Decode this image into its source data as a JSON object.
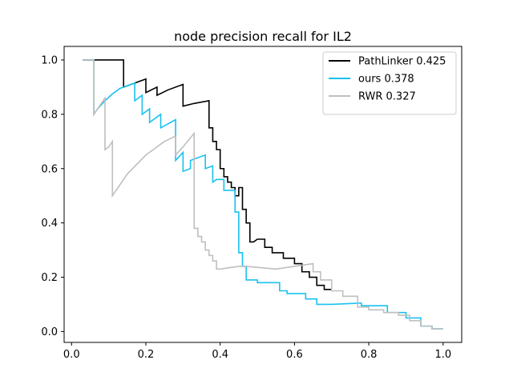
{
  "chart_data": {
    "type": "line",
    "title": "node precision recall for IL2",
    "xlabel": "",
    "ylabel": "",
    "xlim": [
      -0.02,
      1.05
    ],
    "ylim": [
      -0.04,
      1.05
    ],
    "xticks": [
      0.0,
      0.2,
      0.4,
      0.6,
      0.8,
      1.0
    ],
    "xtick_labels": [
      "0.0",
      "0.2",
      "0.4",
      "0.6",
      "0.8",
      "1.0"
    ],
    "yticks": [
      0.0,
      0.2,
      0.4,
      0.6,
      0.8,
      1.0
    ],
    "ytick_labels": [
      "0.0",
      "0.2",
      "0.4",
      "0.6",
      "0.8",
      "1.0"
    ],
    "grid": false,
    "legend_position": "top-right",
    "series": [
      {
        "name": "PathLinker 0.425",
        "color": "#000000",
        "points": [
          [
            0.03,
            1.0
          ],
          [
            0.14,
            1.0
          ],
          [
            0.14,
            0.9
          ],
          [
            0.15,
            0.905
          ],
          [
            0.16,
            0.91
          ],
          [
            0.17,
            0.915
          ],
          [
            0.18,
            0.92
          ],
          [
            0.2,
            0.93
          ],
          [
            0.2,
            0.88
          ],
          [
            0.23,
            0.9
          ],
          [
            0.23,
            0.87
          ],
          [
            0.26,
            0.89
          ],
          [
            0.3,
            0.91
          ],
          [
            0.3,
            0.83
          ],
          [
            0.33,
            0.84
          ],
          [
            0.37,
            0.85
          ],
          [
            0.37,
            0.75
          ],
          [
            0.38,
            0.75
          ],
          [
            0.38,
            0.7
          ],
          [
            0.39,
            0.7
          ],
          [
            0.39,
            0.67
          ],
          [
            0.4,
            0.67
          ],
          [
            0.4,
            0.6
          ],
          [
            0.41,
            0.6
          ],
          [
            0.41,
            0.57
          ],
          [
            0.42,
            0.57
          ],
          [
            0.42,
            0.55
          ],
          [
            0.43,
            0.55
          ],
          [
            0.43,
            0.53
          ],
          [
            0.44,
            0.53
          ],
          [
            0.44,
            0.5
          ],
          [
            0.45,
            0.5
          ],
          [
            0.45,
            0.53
          ],
          [
            0.46,
            0.53
          ],
          [
            0.46,
            0.45
          ],
          [
            0.47,
            0.45
          ],
          [
            0.47,
            0.4
          ],
          [
            0.48,
            0.4
          ],
          [
            0.48,
            0.33
          ],
          [
            0.49,
            0.33
          ],
          [
            0.5,
            0.34
          ],
          [
            0.52,
            0.34
          ],
          [
            0.52,
            0.31
          ],
          [
            0.54,
            0.31
          ],
          [
            0.54,
            0.29
          ],
          [
            0.57,
            0.29
          ],
          [
            0.57,
            0.27
          ],
          [
            0.6,
            0.27
          ],
          [
            0.6,
            0.25
          ],
          [
            0.62,
            0.25
          ],
          [
            0.62,
            0.22
          ],
          [
            0.64,
            0.22
          ],
          [
            0.64,
            0.2
          ],
          [
            0.66,
            0.2
          ],
          [
            0.66,
            0.17
          ],
          [
            0.68,
            0.17
          ],
          [
            0.68,
            0.155
          ],
          [
            0.7,
            0.155
          ]
        ]
      },
      {
        "name": "ours 0.378",
        "color": "#19c0f0",
        "points": [
          [
            0.03,
            1.0
          ],
          [
            0.06,
            1.0
          ],
          [
            0.06,
            0.8
          ],
          [
            0.07,
            0.82
          ],
          [
            0.09,
            0.85
          ],
          [
            0.11,
            0.875
          ],
          [
            0.13,
            0.895
          ],
          [
            0.15,
            0.905
          ],
          [
            0.17,
            0.915
          ],
          [
            0.17,
            0.85
          ],
          [
            0.19,
            0.87
          ],
          [
            0.19,
            0.8
          ],
          [
            0.21,
            0.82
          ],
          [
            0.21,
            0.77
          ],
          [
            0.24,
            0.8
          ],
          [
            0.24,
            0.75
          ],
          [
            0.28,
            0.78
          ],
          [
            0.28,
            0.63
          ],
          [
            0.3,
            0.66
          ],
          [
            0.3,
            0.59
          ],
          [
            0.32,
            0.6
          ],
          [
            0.32,
            0.63
          ],
          [
            0.36,
            0.65
          ],
          [
            0.36,
            0.6
          ],
          [
            0.38,
            0.61
          ],
          [
            0.38,
            0.55
          ],
          [
            0.39,
            0.56
          ],
          [
            0.41,
            0.56
          ],
          [
            0.41,
            0.52
          ],
          [
            0.42,
            0.52
          ],
          [
            0.44,
            0.52
          ],
          [
            0.44,
            0.44
          ],
          [
            0.45,
            0.44
          ],
          [
            0.45,
            0.29
          ],
          [
            0.46,
            0.29
          ],
          [
            0.46,
            0.24
          ],
          [
            0.47,
            0.24
          ],
          [
            0.47,
            0.19
          ],
          [
            0.48,
            0.19
          ],
          [
            0.5,
            0.19
          ],
          [
            0.5,
            0.18
          ],
          [
            0.56,
            0.18
          ],
          [
            0.56,
            0.15
          ],
          [
            0.58,
            0.15
          ],
          [
            0.58,
            0.14
          ],
          [
            0.63,
            0.14
          ],
          [
            0.63,
            0.12
          ],
          [
            0.66,
            0.12
          ],
          [
            0.66,
            0.1
          ],
          [
            0.7,
            0.1
          ],
          [
            0.78,
            0.105
          ],
          [
            0.78,
            0.095
          ],
          [
            0.85,
            0.095
          ],
          [
            0.85,
            0.07
          ],
          [
            0.9,
            0.07
          ],
          [
            0.9,
            0.05
          ],
          [
            0.94,
            0.05
          ],
          [
            0.94,
            0.02
          ],
          [
            0.97,
            0.02
          ],
          [
            0.97,
            0.01
          ],
          [
            1.0,
            0.01
          ]
        ]
      },
      {
        "name": "RWR 0.327",
        "color": "#bfbfbf",
        "points": [
          [
            0.03,
            1.0
          ],
          [
            0.06,
            1.0
          ],
          [
            0.06,
            0.8
          ],
          [
            0.07,
            0.82
          ],
          [
            0.09,
            0.86
          ],
          [
            0.09,
            0.67
          ],
          [
            0.1,
            0.68
          ],
          [
            0.11,
            0.7
          ],
          [
            0.11,
            0.5
          ],
          [
            0.15,
            0.58
          ],
          [
            0.2,
            0.65
          ],
          [
            0.25,
            0.7
          ],
          [
            0.28,
            0.72
          ],
          [
            0.28,
            0.65
          ],
          [
            0.3,
            0.68
          ],
          [
            0.33,
            0.73
          ],
          [
            0.33,
            0.38
          ],
          [
            0.34,
            0.38
          ],
          [
            0.34,
            0.35
          ],
          [
            0.35,
            0.35
          ],
          [
            0.35,
            0.33
          ],
          [
            0.36,
            0.33
          ],
          [
            0.36,
            0.3
          ],
          [
            0.37,
            0.3
          ],
          [
            0.37,
            0.28
          ],
          [
            0.38,
            0.28
          ],
          [
            0.38,
            0.26
          ],
          [
            0.39,
            0.26
          ],
          [
            0.39,
            0.23
          ],
          [
            0.4,
            0.23
          ],
          [
            0.45,
            0.24
          ],
          [
            0.47,
            0.24
          ],
          [
            0.55,
            0.23
          ],
          [
            0.6,
            0.24
          ],
          [
            0.65,
            0.25
          ],
          [
            0.65,
            0.22
          ],
          [
            0.67,
            0.22
          ],
          [
            0.67,
            0.19
          ],
          [
            0.7,
            0.19
          ],
          [
            0.7,
            0.15
          ],
          [
            0.73,
            0.15
          ],
          [
            0.73,
            0.13
          ],
          [
            0.77,
            0.13
          ],
          [
            0.77,
            0.09
          ],
          [
            0.8,
            0.09
          ],
          [
            0.8,
            0.08
          ],
          [
            0.84,
            0.08
          ],
          [
            0.84,
            0.07
          ],
          [
            0.88,
            0.07
          ],
          [
            0.88,
            0.06
          ],
          [
            0.91,
            0.06
          ],
          [
            0.91,
            0.04
          ],
          [
            0.94,
            0.04
          ],
          [
            0.94,
            0.02
          ],
          [
            0.97,
            0.02
          ],
          [
            0.97,
            0.01
          ],
          [
            1.0,
            0.01
          ]
        ]
      }
    ]
  }
}
